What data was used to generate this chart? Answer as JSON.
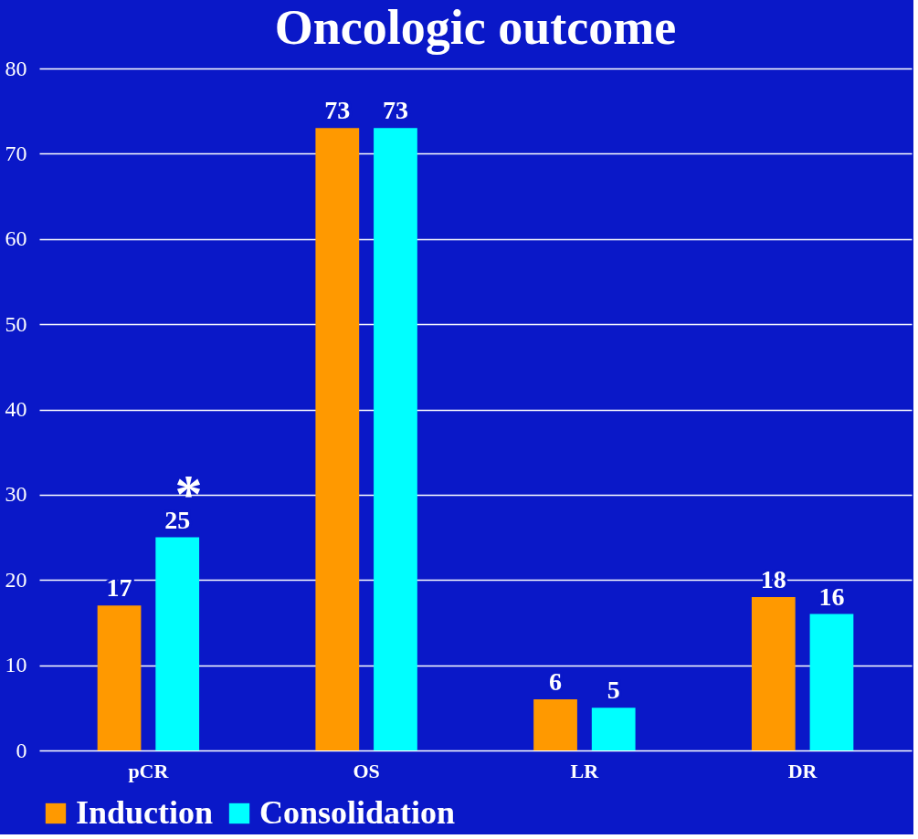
{
  "chart_data": {
    "type": "bar",
    "title": "Oncologic outcome",
    "categories": [
      "pCR",
      "OS",
      "LR",
      "DR"
    ],
    "series": [
      {
        "name": "Induction",
        "color": "#ff9900",
        "values": [
          17,
          73,
          6,
          18
        ]
      },
      {
        "name": "Consolidation",
        "color": "#00ffff",
        "values": [
          25,
          73,
          5,
          16
        ]
      }
    ],
    "ylim": [
      0,
      80
    ],
    "yticks": [
      0,
      10,
      20,
      30,
      40,
      50,
      60,
      70,
      80
    ],
    "grid": "y",
    "legend": "bottom",
    "data_labels": true,
    "annotations": [
      "*"
    ]
  }
}
